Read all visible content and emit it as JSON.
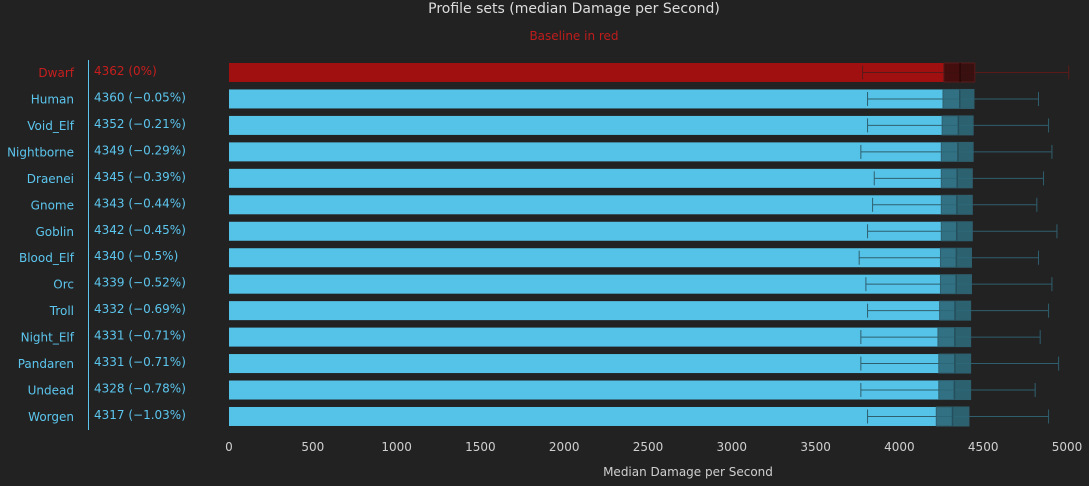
{
  "chart_data": {
    "type": "bar",
    "title": "Profile sets (median Damage per Second)",
    "subtitle": "Baseline in red",
    "xlabel": "Median Damage per Second",
    "ylabel": "",
    "xlim": [
      0,
      5000
    ],
    "x_ticks": [
      "0",
      "500",
      "1000",
      "1500",
      "2000",
      "2500",
      "3000",
      "3500",
      "4000",
      "4500",
      "5000"
    ],
    "grid": false,
    "colors": {
      "baseline": "#a01010",
      "baseline_label": "#c81e1e",
      "bar": "#55c3e8",
      "label": "#5cc6ee",
      "box": "#2e6878",
      "box_baseline": "#3b0e0e",
      "whisker": "#2f5f6e"
    },
    "categories": [
      "Dwarf",
      "Human",
      "Void_Elf",
      "Nightborne",
      "Draenei",
      "Gnome",
      "Goblin",
      "Blood_Elf",
      "Orc",
      "Troll",
      "Night_Elf",
      "Pandaren",
      "Undead",
      "Worgen"
    ],
    "value_labels": [
      "4362 (0%)",
      "4360 (−0.05%)",
      "4352 (−0.21%)",
      "4349 (−0.29%)",
      "4345 (−0.39%)",
      "4343 (−0.44%)",
      "4342 (−0.45%)",
      "4340 (−0.5%)",
      "4339 (−0.52%)",
      "4332 (−0.69%)",
      "4331 (−0.71%)",
      "4331 (−0.71%)",
      "4328 (−0.78%)",
      "4317 (−1.03%)"
    ],
    "values": [
      4362,
      4360,
      4352,
      4349,
      4345,
      4343,
      4342,
      4340,
      4339,
      4332,
      4331,
      4331,
      4328,
      4317
    ],
    "q1": [
      4265,
      4260,
      4255,
      4250,
      4250,
      4250,
      4250,
      4245,
      4245,
      4240,
      4230,
      4235,
      4235,
      4220
    ],
    "q3": [
      4450,
      4445,
      4440,
      4440,
      4435,
      4435,
      4435,
      4430,
      4430,
      4425,
      4425,
      4425,
      4425,
      4415
    ],
    "whisker_low": [
      3780,
      3810,
      3810,
      3770,
      3850,
      3840,
      3810,
      3760,
      3800,
      3810,
      3770,
      3770,
      3770,
      3810
    ],
    "whisker_high": [
      5010,
      4830,
      4890,
      4910,
      4860,
      4820,
      4940,
      4830,
      4910,
      4890,
      4840,
      4950,
      4810,
      4890
    ],
    "baseline_index": 0
  }
}
